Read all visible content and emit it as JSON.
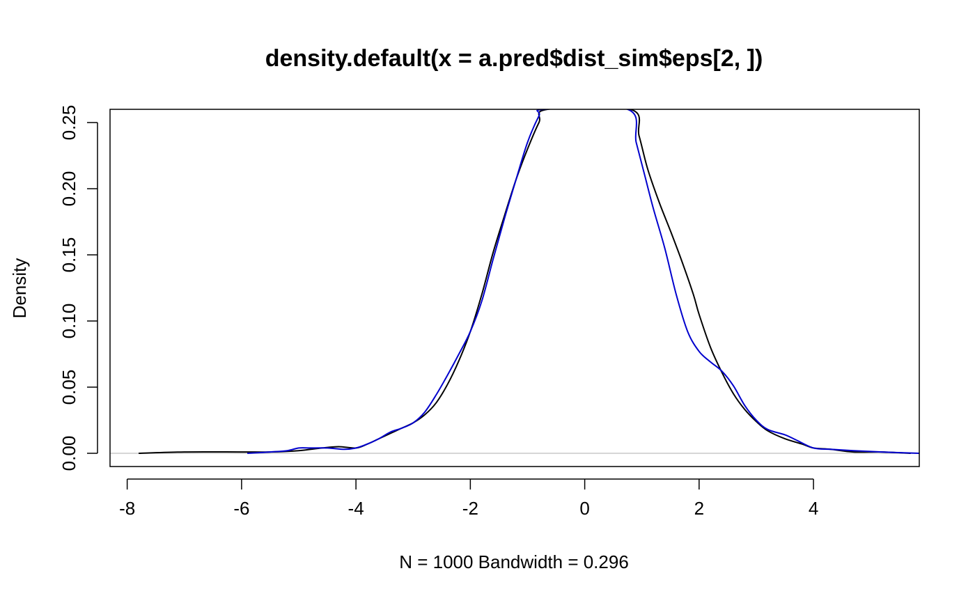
{
  "chart_data": {
    "type": "line",
    "title": "density.default(x = a.pred$dist_sim$eps[2, ])",
    "xlabel": "N = 1000   Bandwidth = 0.296",
    "ylabel": "Density",
    "xlim": [
      -8.3,
      5.85
    ],
    "ylim": [
      -0.01,
      0.26
    ],
    "x_ticks": [
      -8,
      -6,
      -4,
      -2,
      0,
      2,
      4
    ],
    "x_tick_labels": [
      "-8",
      "-6",
      "-4",
      "-2",
      "0",
      "2",
      "4"
    ],
    "y_ticks": [
      0,
      0.05,
      0.1,
      0.15,
      0.2,
      0.25
    ],
    "y_tick_labels": [
      "0.00",
      "0.05",
      "0.10",
      "0.15",
      "0.20",
      "0.25"
    ],
    "grid": false,
    "legend": "none",
    "baseline": {
      "y": 0,
      "color": "#bebebe"
    },
    "series": [
      {
        "color": "#000000",
        "x": [
          -7.8,
          -7.0,
          -6.0,
          -5.5,
          -5.0,
          -4.6,
          -4.3,
          -4.0,
          -3.8,
          -3.6,
          -3.4,
          -3.2,
          -3.0,
          -2.8,
          -2.6,
          -2.4,
          -2.2,
          -2.0,
          -1.8,
          -1.6,
          -1.4,
          -1.2,
          -1.0,
          -0.8,
          -0.65,
          0.8,
          0.95,
          1.1,
          1.3,
          1.5,
          1.7,
          1.9,
          2.0,
          2.2,
          2.4,
          2.6,
          2.8,
          3.0,
          3.2,
          3.5,
          3.8,
          4.0,
          4.3,
          4.7,
          5.2,
          5.7
        ],
        "y": [
          0.0,
          0.001,
          0.001,
          0.001,
          0.002,
          0.004,
          0.005,
          0.004,
          0.007,
          0.011,
          0.015,
          0.019,
          0.023,
          0.029,
          0.038,
          0.052,
          0.07,
          0.092,
          0.12,
          0.152,
          0.18,
          0.207,
          0.23,
          0.25,
          0.26,
          0.26,
          0.24,
          0.215,
          0.19,
          0.168,
          0.145,
          0.12,
          0.105,
          0.08,
          0.061,
          0.045,
          0.033,
          0.024,
          0.017,
          0.011,
          0.007,
          0.004,
          0.003,
          0.001,
          0.001,
          0.0
        ]
      },
      {
        "color": "#0000cd",
        "x": [
          -5.9,
          -5.5,
          -5.2,
          -5.0,
          -4.8,
          -4.5,
          -4.2,
          -4.0,
          -3.8,
          -3.6,
          -3.4,
          -3.2,
          -3.0,
          -2.8,
          -2.6,
          -2.4,
          -2.2,
          -2.0,
          -1.8,
          -1.6,
          -1.4,
          -1.2,
          -1.0,
          -0.8,
          -0.7,
          0.75,
          0.9,
          1.05,
          1.2,
          1.4,
          1.6,
          1.8,
          2.0,
          2.2,
          2.4,
          2.6,
          2.8,
          3.0,
          3.2,
          3.5,
          3.7,
          4.0,
          4.3,
          4.7,
          5.2,
          5.85
        ],
        "y": [
          0.0,
          0.001,
          0.002,
          0.004,
          0.004,
          0.004,
          0.003,
          0.004,
          0.007,
          0.011,
          0.016,
          0.019,
          0.023,
          0.031,
          0.044,
          0.059,
          0.075,
          0.092,
          0.115,
          0.147,
          0.178,
          0.207,
          0.235,
          0.255,
          0.26,
          0.26,
          0.235,
          0.21,
          0.185,
          0.155,
          0.12,
          0.092,
          0.077,
          0.069,
          0.062,
          0.051,
          0.036,
          0.025,
          0.018,
          0.014,
          0.01,
          0.004,
          0.003,
          0.002,
          0.001,
          0.0
        ]
      }
    ]
  }
}
